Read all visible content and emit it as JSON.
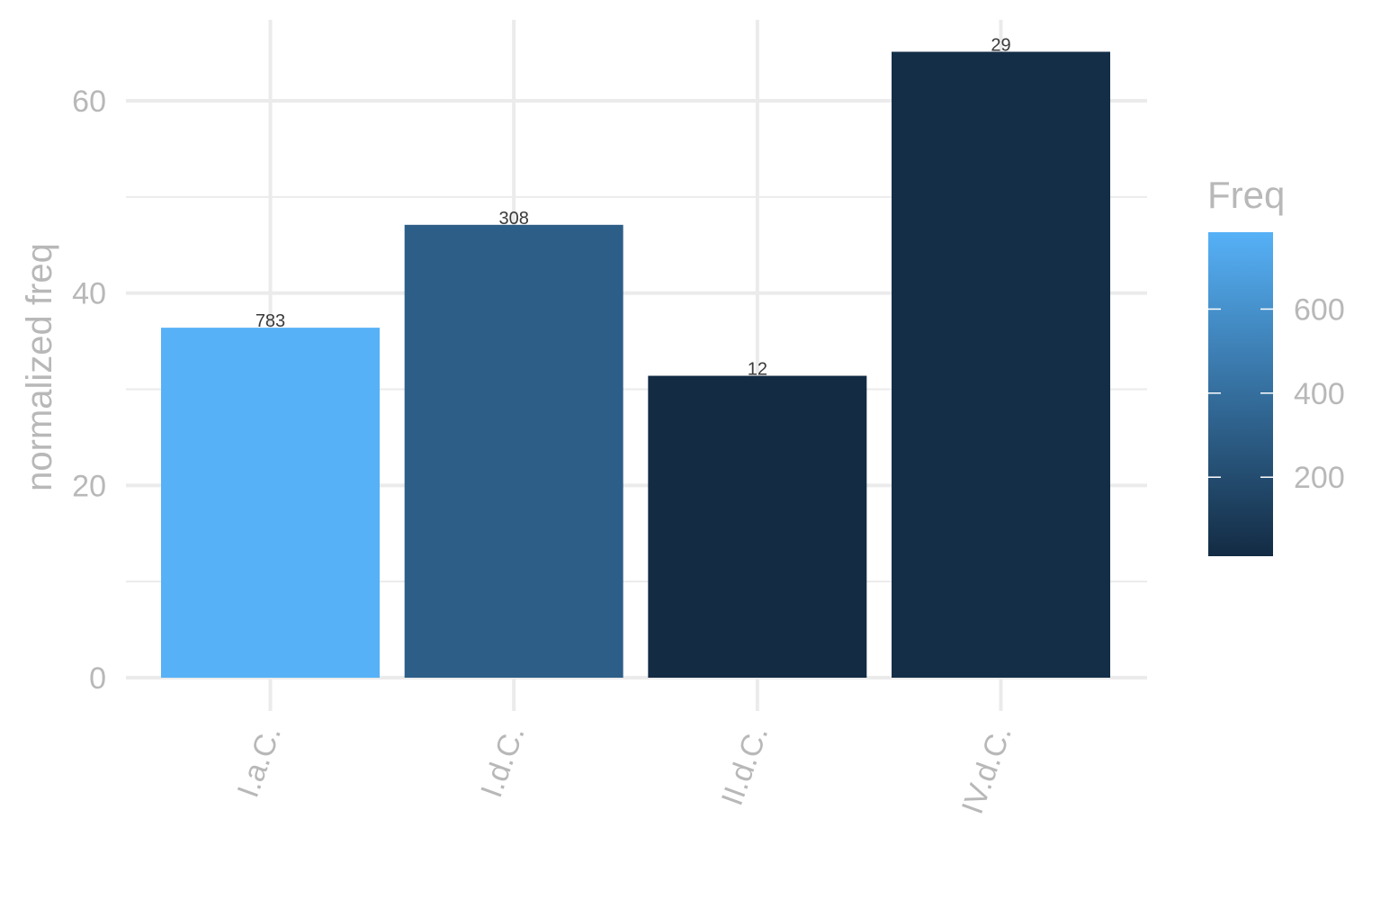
{
  "chart_data": {
    "type": "bar",
    "categories": [
      "I.a.C.",
      "I.d.C.",
      "II.d.C.",
      "IV.d.C."
    ],
    "values": [
      36.4,
      47.1,
      31.4,
      65.1
    ],
    "labels": [
      "783",
      "308",
      "12",
      "29"
    ],
    "fill_values": [
      783,
      308,
      12,
      29
    ],
    "xlabel": "",
    "ylabel": "normalized freq",
    "ylim": [
      0,
      68
    ],
    "y_ticks": [
      0,
      20,
      40,
      60
    ],
    "grid": true,
    "legend": {
      "title": "Freq",
      "placement": "right",
      "range": [
        12,
        783
      ],
      "ticks": [
        200,
        400,
        600
      ],
      "color_low": "#132b43",
      "color_high": "#56b1f7"
    }
  }
}
